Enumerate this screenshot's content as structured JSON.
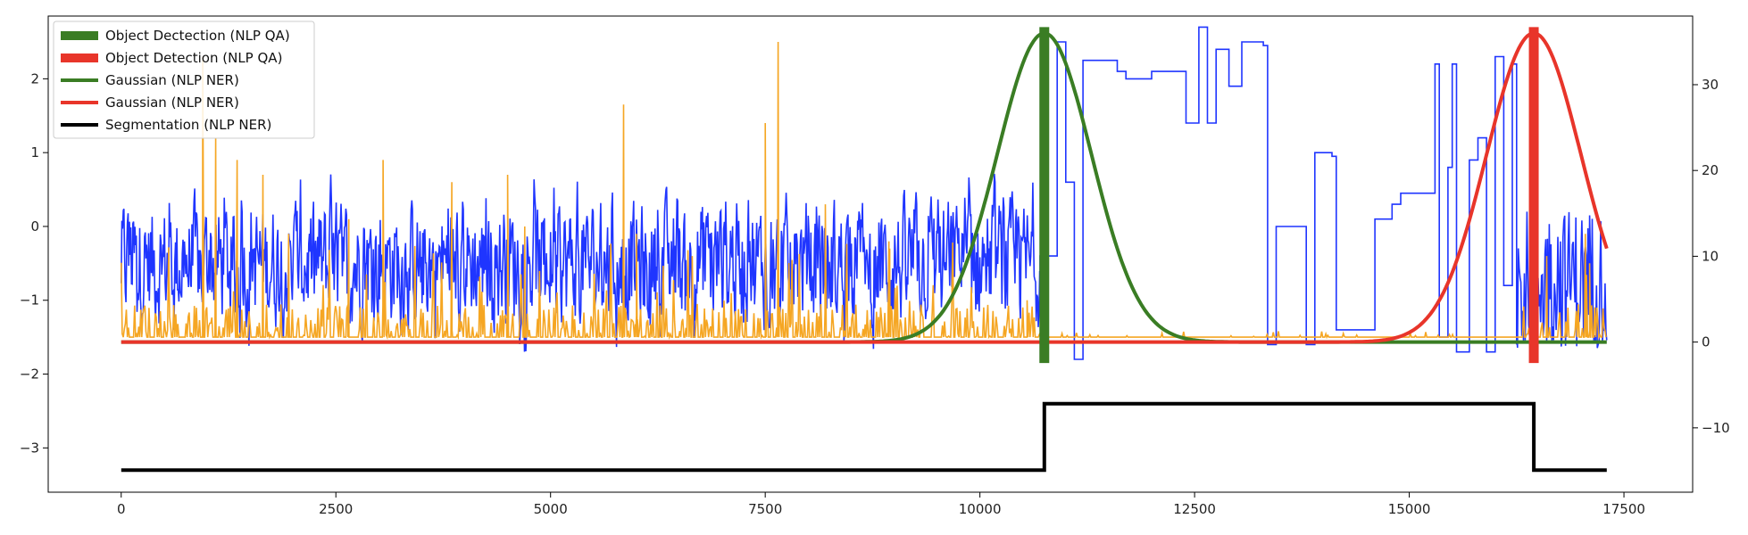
{
  "chart_data": {
    "type": "line",
    "title": "",
    "xlabel": "",
    "ylabel": "",
    "y2label": "",
    "xlim": [
      -850,
      18300
    ],
    "ylim": [
      -3.6,
      2.85
    ],
    "y2lim": [
      -17.5,
      38
    ],
    "x_ticks": [
      0,
      2500,
      5000,
      7500,
      10000,
      12500,
      15000,
      17500
    ],
    "y_ticks": [
      -3,
      -2,
      -1,
      0,
      1,
      2
    ],
    "y2_ticks": [
      -10,
      0,
      10,
      20,
      30
    ],
    "grid": false,
    "legend_position": "top-left",
    "legend": [
      {
        "label": "Object Dectection (NLP QA)",
        "color": "#3a7d24",
        "style": "thick"
      },
      {
        "label": "Object Detection (NLP QA)",
        "color": "#e8352a",
        "style": "thick"
      },
      {
        "label": "Gaussian (NLP NER)",
        "color": "#3a7d24",
        "style": "line"
      },
      {
        "label": "Gaussian (NLP NER)",
        "color": "#e8352a",
        "style": "line"
      },
      {
        "label": "Segmentation (NLP NER)",
        "color": "#000000",
        "style": "line"
      }
    ],
    "series": [
      {
        "kind": "signal",
        "axis": "left",
        "color": "#1f35ff",
        "x_range": [
          0,
          17300
        ],
        "noisy_until": 10700,
        "noise_center": -0.5,
        "noise_amplitude": 1.15,
        "steps": [
          {
            "x": 10700,
            "y": -0.4
          },
          {
            "x": 10900,
            "y": 2.5
          },
          {
            "x": 11000,
            "y": 0.6
          },
          {
            "x": 11100,
            "y": -1.8
          },
          {
            "x": 11200,
            "y": 2.25
          },
          {
            "x": 11600,
            "y": 2.1
          },
          {
            "x": 11700,
            "y": 2.0
          },
          {
            "x": 12000,
            "y": 2.1
          },
          {
            "x": 12300,
            "y": 2.1
          },
          {
            "x": 12400,
            "y": 1.4
          },
          {
            "x": 12550,
            "y": 2.7
          },
          {
            "x": 12650,
            "y": 1.4
          },
          {
            "x": 12750,
            "y": 2.4
          },
          {
            "x": 12900,
            "y": 1.9
          },
          {
            "x": 13050,
            "y": 2.5
          },
          {
            "x": 13200,
            "y": 2.5
          },
          {
            "x": 13300,
            "y": 2.45
          },
          {
            "x": 13350,
            "y": -1.6
          },
          {
            "x": 13450,
            "y": 0.0
          },
          {
            "x": 13700,
            "y": 0.0
          },
          {
            "x": 13800,
            "y": -1.6
          },
          {
            "x": 13900,
            "y": 1.0
          },
          {
            "x": 14100,
            "y": 0.95
          },
          {
            "x": 14150,
            "y": -1.4
          },
          {
            "x": 14550,
            "y": -1.4
          },
          {
            "x": 14600,
            "y": 0.1
          },
          {
            "x": 14800,
            "y": 0.3
          },
          {
            "x": 14900,
            "y": 0.45
          },
          {
            "x": 15200,
            "y": 0.45
          },
          {
            "x": 15300,
            "y": 2.2
          },
          {
            "x": 15350,
            "y": -1.5
          },
          {
            "x": 15450,
            "y": 0.8
          },
          {
            "x": 15500,
            "y": 2.2
          },
          {
            "x": 15550,
            "y": -1.7
          },
          {
            "x": 15700,
            "y": 0.9
          },
          {
            "x": 15800,
            "y": 1.2
          },
          {
            "x": 15900,
            "y": -1.7
          },
          {
            "x": 16000,
            "y": 2.3
          },
          {
            "x": 16100,
            "y": -0.8
          },
          {
            "x": 16200,
            "y": 2.2
          },
          {
            "x": 16250,
            "y": -1.6
          }
        ]
      },
      {
        "kind": "spikes",
        "axis": "left",
        "color": "#f5a623",
        "baseline": -1.5,
        "x_range": [
          0,
          17300
        ],
        "peaks": [
          {
            "x": 950,
            "y": 2.3
          },
          {
            "x": 1100,
            "y": 1.2
          },
          {
            "x": 1350,
            "y": 0.9
          },
          {
            "x": 1650,
            "y": 0.7
          },
          {
            "x": 1950,
            "y": -0.1
          },
          {
            "x": 2650,
            "y": 0.1
          },
          {
            "x": 3050,
            "y": 0.9
          },
          {
            "x": 3850,
            "y": 0.6
          },
          {
            "x": 4500,
            "y": 0.7
          },
          {
            "x": 4700,
            "y": 0.0
          },
          {
            "x": 5850,
            "y": 1.65
          },
          {
            "x": 6000,
            "y": -0.1
          },
          {
            "x": 6650,
            "y": -0.4
          },
          {
            "x": 7500,
            "y": 1.4
          },
          {
            "x": 7650,
            "y": 2.5
          },
          {
            "x": 8200,
            "y": 0.3
          },
          {
            "x": 8950,
            "y": -0.3
          },
          {
            "x": 10550,
            "y": -1.0
          },
          {
            "x": 16600,
            "y": -0.4
          },
          {
            "x": 17050,
            "y": -0.1
          },
          {
            "x": 17100,
            "y": -0.5
          }
        ]
      },
      {
        "name": "Object Dectection (NLP QA)",
        "kind": "vbar",
        "axis": "left",
        "color": "#3a7d24",
        "x": 10750,
        "y_from": -1.85,
        "y_to": 2.7
      },
      {
        "name": "Object Detection (NLP QA)",
        "kind": "vbar",
        "axis": "left",
        "color": "#e8352a",
        "x": 16450,
        "y_from": -1.85,
        "y_to": 2.7
      },
      {
        "name": "Gaussian (NLP NER)",
        "kind": "gaussian",
        "axis": "right",
        "color": "#3a7d24",
        "mu": 10750,
        "sigma": 550,
        "peak": 36,
        "x_range": [
          0,
          17300
        ]
      },
      {
        "name": "Gaussian (NLP NER)",
        "kind": "gaussian",
        "axis": "right",
        "color": "#e8352a",
        "mu": 16450,
        "sigma": 550,
        "peak": 36,
        "x_range": [
          0,
          17300
        ]
      },
      {
        "name": "Segmentation (NLP NER)",
        "kind": "step",
        "axis": "left",
        "color": "#000000",
        "points": [
          [
            0,
            -3.3
          ],
          [
            10750,
            -3.3
          ],
          [
            10750,
            -2.4
          ],
          [
            16450,
            -2.4
          ],
          [
            16450,
            -3.3
          ],
          [
            17300,
            -3.3
          ]
        ]
      }
    ]
  }
}
